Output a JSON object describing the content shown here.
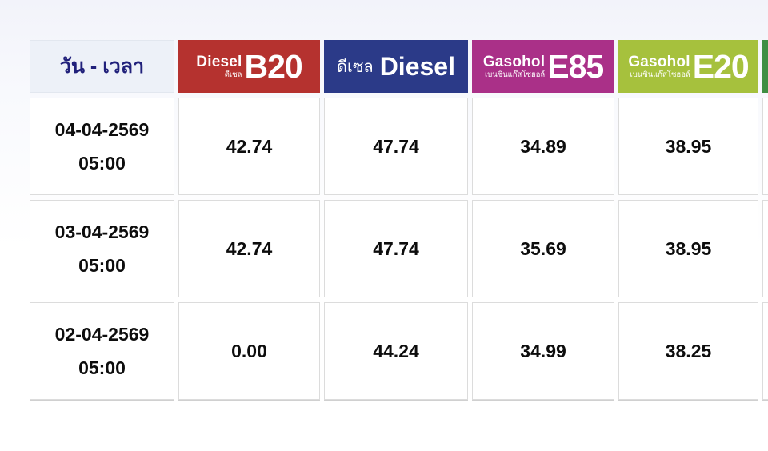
{
  "table": {
    "date_header": "วัน - เวลา",
    "columns": [
      {
        "id": "diesel-b20",
        "brand": "Diesel",
        "sub": "ดีเซล",
        "code": "B20",
        "color": "#b5322f"
      },
      {
        "id": "diesel",
        "thai": "ดีเซล",
        "code": "Diesel",
        "color": "#2b3a88"
      },
      {
        "id": "gasohol-e85",
        "brand": "Gasohol",
        "sub": "เบนซินแก๊สโซฮอล์",
        "code": "E85",
        "color": "#aa3088"
      },
      {
        "id": "gasohol-e20",
        "brand": "Gasohol",
        "sub": "เบนซินแก๊สโซฮอล์",
        "code": "E20",
        "color": "#a6c13d"
      },
      {
        "id": "next-partial",
        "code": "",
        "color": "#3f8f43"
      }
    ],
    "rows": [
      {
        "date": "04-04-2569",
        "time": "05:00",
        "values": [
          "42.74",
          "47.74",
          "34.89",
          "38.95",
          ""
        ]
      },
      {
        "date": "03-04-2569",
        "time": "05:00",
        "values": [
          "42.74",
          "47.74",
          "35.69",
          "38.95",
          ""
        ]
      },
      {
        "date": "02-04-2569",
        "time": "05:00",
        "values": [
          "0.00",
          "44.24",
          "34.99",
          "38.25",
          ""
        ]
      }
    ]
  }
}
